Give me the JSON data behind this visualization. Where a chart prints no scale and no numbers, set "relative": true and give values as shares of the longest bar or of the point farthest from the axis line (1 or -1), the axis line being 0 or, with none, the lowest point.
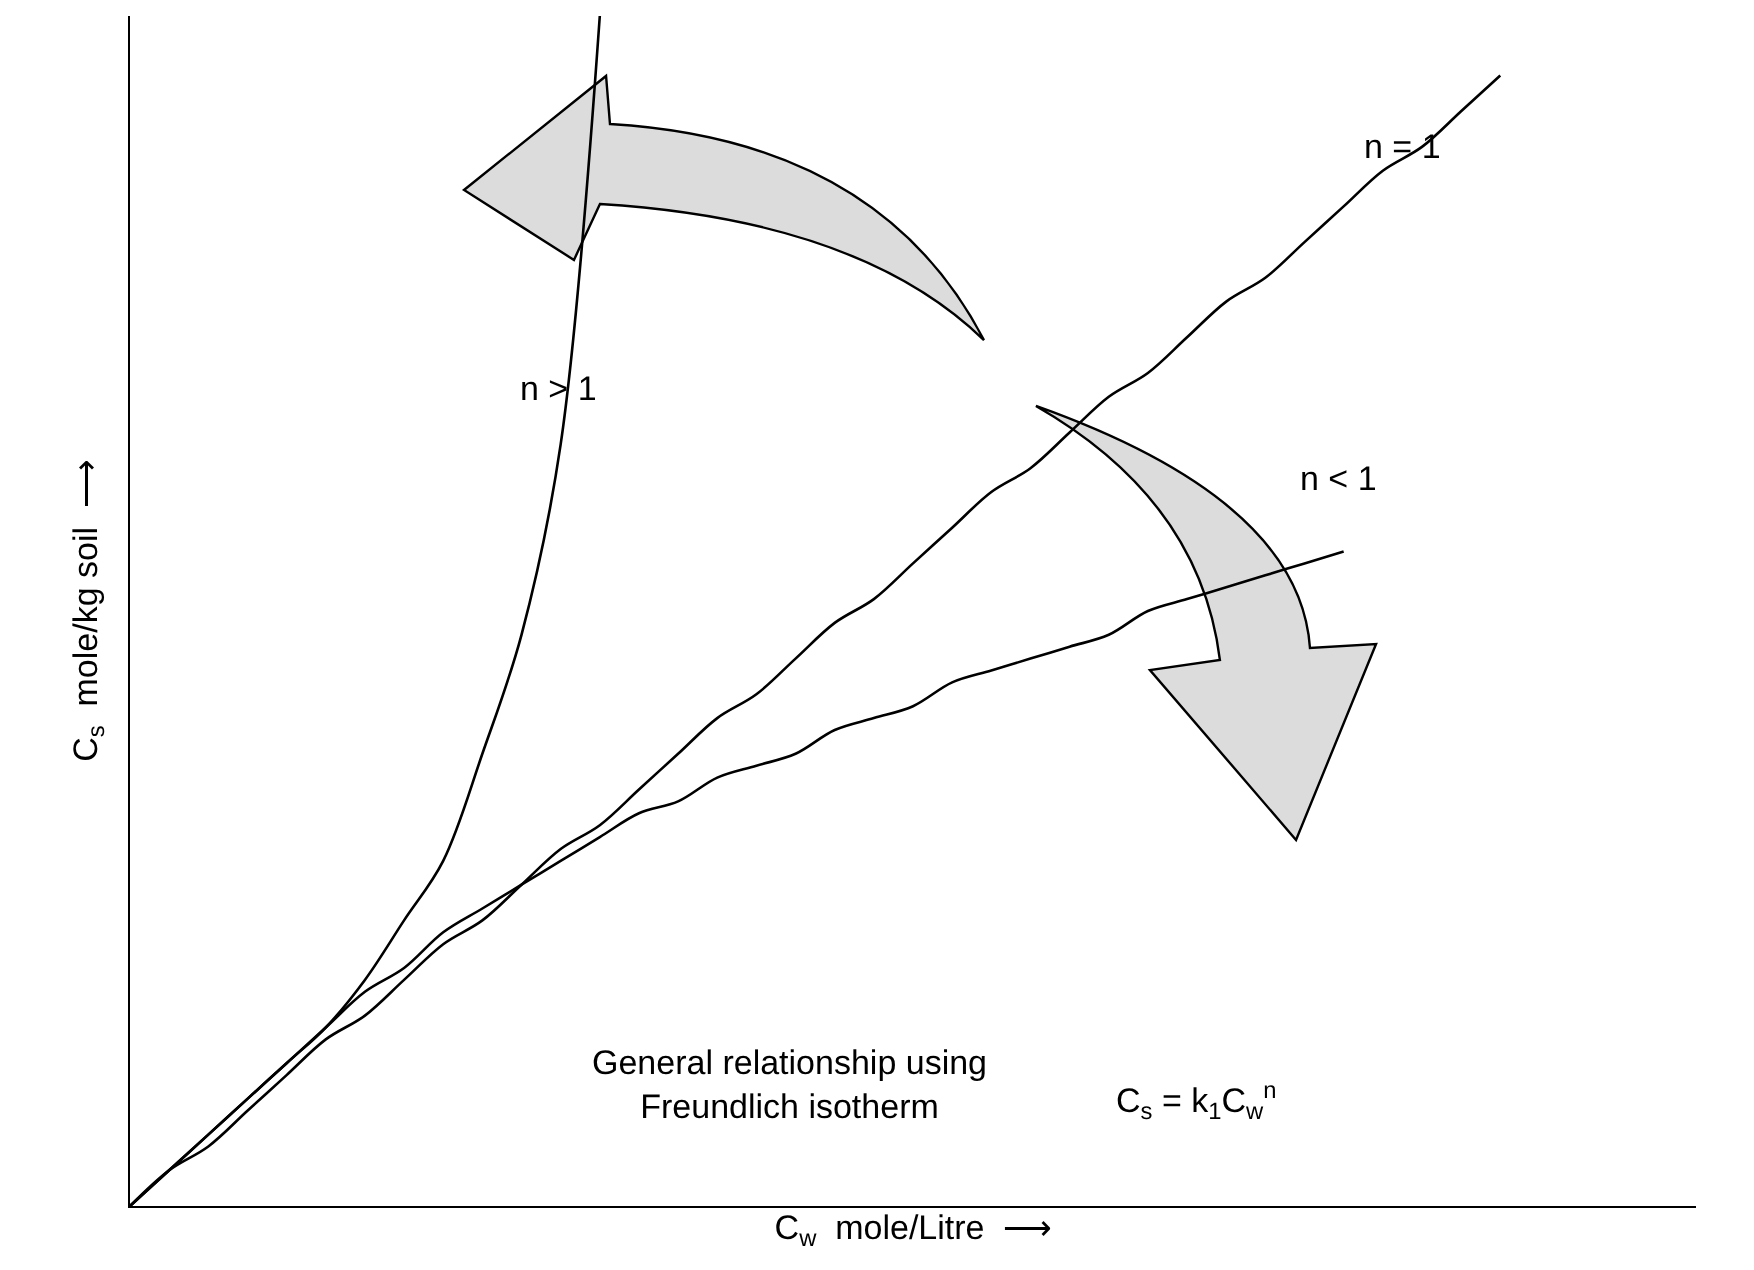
{
  "chart_data": {
    "type": "line",
    "relative": true,
    "xlabel": "C$_{w}$  mole/Litre  ⟶",
    "ylabel": "C$_{s}$  mole/kg soil  ⟶",
    "categories": [
      null,
      null,
      null,
      null,
      null,
      null,
      null,
      null,
      null,
      null,
      null,
      null,
      null,
      null,
      null,
      null,
      null,
      null,
      null,
      null,
      null,
      null,
      null,
      null,
      null,
      null,
      null,
      null,
      null,
      null,
      null,
      null,
      null,
      null,
      null,
      null,
      null,
      null,
      null,
      null,
      null
    ],
    "series": [
      {
        "name": "n > 1",
        "color": "#000000",
        "values": [
          0,
          0.03,
          0.06,
          0.09,
          0.12,
          0.15,
          0.19,
          0.24,
          0.29,
          0.38,
          0.48,
          0.64,
          1.0,
          null,
          null,
          null,
          null,
          null,
          null,
          null,
          null,
          null,
          null,
          null,
          null,
          null,
          null,
          null,
          null,
          null,
          null,
          null,
          null,
          null,
          null,
          null,
          null,
          null,
          null,
          null,
          null
        ]
      },
      {
        "name": "n = 1",
        "color": "#000000",
        "values": [
          0,
          0.03,
          0.05,
          0.08,
          0.11,
          0.14,
          0.16,
          0.19,
          0.22,
          0.24,
          0.27,
          0.3,
          0.32,
          0.35,
          0.38,
          0.41,
          0.43,
          0.46,
          0.49,
          0.51,
          0.54,
          0.57,
          0.6,
          0.62,
          0.65,
          0.68,
          0.7,
          0.73,
          0.76,
          0.78,
          0.81,
          0.84,
          0.87,
          0.89,
          0.92,
          0.95,
          null,
          null,
          null,
          null,
          null
        ]
      },
      {
        "name": "n < 1",
        "color": "#000000",
        "values": [
          0,
          0.03,
          0.06,
          0.09,
          0.12,
          0.15,
          0.18,
          0.2,
          0.23,
          0.25,
          0.27,
          0.29,
          0.31,
          0.33,
          0.34,
          0.36,
          0.37,
          0.38,
          0.4,
          0.41,
          0.42,
          0.44,
          0.45,
          0.46,
          0.47,
          0.48,
          0.5,
          0.51,
          0.52,
          0.53,
          0.54,
          0.55,
          null,
          null,
          null,
          null,
          null,
          null,
          null,
          null,
          null
        ]
      }
    ],
    "annotations": [
      "General relationship using\nFreundlich isotherm",
      "C$_{s}$ = k$_{1}$C$_{w}$$^{n}$"
    ],
    "legend": false,
    "grid": false,
    "tick_labels": false
  }
}
